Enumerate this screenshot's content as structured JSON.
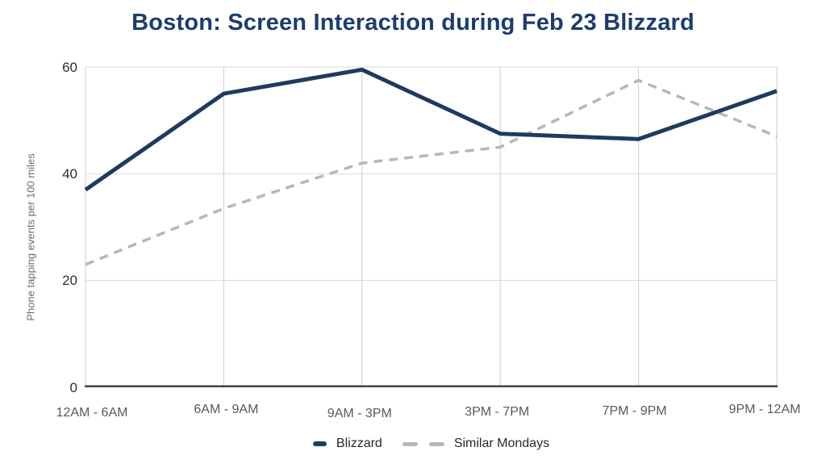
{
  "chart_data": {
    "type": "line",
    "title": "Boston: Screen Interaction during Feb 23 Blizzard",
    "title_color": "#1d3c6e",
    "ylabel": "Phone tapping events per 100 miles",
    "xlabel": "",
    "categories": [
      "12AM - 6AM",
      "6AM - 9AM",
      "9AM - 3PM",
      "3PM - 7PM",
      "7PM - 9PM",
      "9PM - 12AM"
    ],
    "series": [
      {
        "name": "Blizzard",
        "color": "#1f3a60",
        "style": "solid",
        "values": [
          37,
          55,
          59.5,
          47.5,
          46.5,
          55.5
        ]
      },
      {
        "name": "Similar Mondays",
        "color": "#b7b7b7",
        "style": "dashed",
        "values": [
          23,
          33.5,
          42,
          45,
          57.5,
          47
        ]
      }
    ],
    "ylim": [
      0,
      60
    ],
    "yticks": [
      0,
      20,
      40,
      60
    ],
    "grid": true,
    "legend_position": "bottom",
    "axis_color": "#424242",
    "grid_color_h": "#d9d9d9",
    "grid_color_v": "#cccccc",
    "tick_label_color": "#2d2d2d",
    "x_label_color": "#58595b",
    "y_title_color": "#6b6b6b",
    "legend_text_color": "#2a2a2a"
  }
}
